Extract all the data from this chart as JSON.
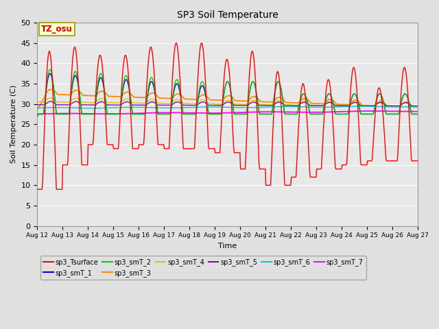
{
  "title": "SP3 Soil Temperature",
  "ylabel": "Soil Temperature (C)",
  "xlabel": "Time",
  "tz_label": "TZ_osu",
  "ylim": [
    0,
    50
  ],
  "yticks": [
    0,
    5,
    10,
    15,
    20,
    25,
    30,
    35,
    40,
    45,
    50
  ],
  "x_tick_labels": [
    "Aug 12",
    "Aug 13",
    "Aug 14",
    "Aug 15",
    "Aug 16",
    "Aug 17",
    "Aug 18",
    "Aug 19",
    "Aug 20",
    "Aug 21",
    "Aug 22",
    "Aug 23",
    "Aug 24",
    "Aug 25",
    "Aug 26",
    "Aug 27"
  ],
  "fig_bg_color": "#e0e0e0",
  "plot_bg_color": "#e8e8e8",
  "grid_color": "#ffffff",
  "series_colors": {
    "sp3_Tsurface": "#ff0000",
    "sp3_smT_1": "#0000cc",
    "sp3_smT_2": "#00cc00",
    "sp3_smT_3": "#ff8800",
    "sp3_smT_4": "#cccc00",
    "sp3_smT_5": "#9900aa",
    "sp3_smT_6": "#00cccc",
    "sp3_smT_7": "#ff00ff"
  },
  "legend_entries": [
    "sp3_Tsurface",
    "sp3_smT_1",
    "sp3_smT_2",
    "sp3_smT_3",
    "sp3_smT_4",
    "sp3_smT_5",
    "sp3_smT_6",
    "sp3_smT_7"
  ]
}
